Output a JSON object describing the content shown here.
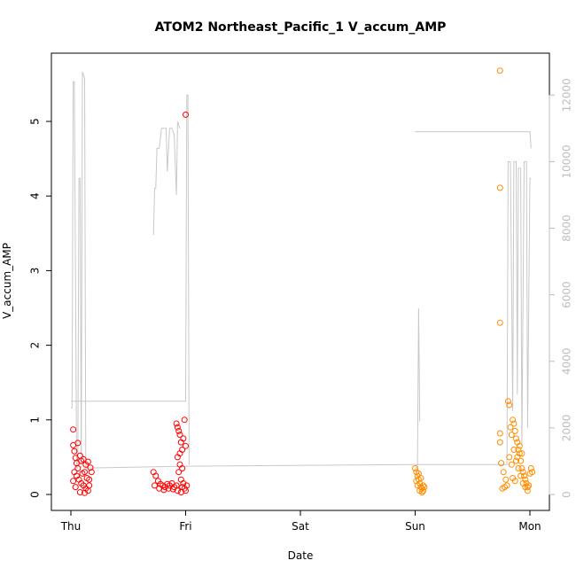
{
  "chart_data": {
    "type": "scatter",
    "title": "ATOM2 Northeast_Pacific_1 V_accum_AMP",
    "xlabel": "Date",
    "ylabel": "V_accum_AMP",
    "x_ticks": [
      "Thu",
      "Fri",
      "Sat",
      "Sun",
      "Mon"
    ],
    "y_ticks": [
      "0",
      "1",
      "2",
      "3",
      "4",
      "5"
    ],
    "y_range": [
      -0.2,
      5.8
    ],
    "y2_ticks": [
      "0",
      "2000",
      "4000",
      "6000",
      "8000",
      "10000",
      "12000"
    ],
    "y2_range": [
      -500,
      13000
    ],
    "grid": false,
    "colors": {
      "series_1": "#ff0000",
      "series_2": "#ff8c00",
      "line": "#c8c8c8",
      "axis": "#000000",
      "right_axis": "#bdbdbd"
    },
    "series": [
      {
        "marker": "circle-open",
        "color": "#ff0000",
        "points": [
          [
            0.02,
            0.87
          ],
          [
            0.02,
            0.66
          ],
          [
            0.03,
            0.58
          ],
          [
            0.04,
            0.49
          ],
          [
            0.05,
            0.42
          ],
          [
            0.06,
            0.69
          ],
          [
            0.08,
            0.52
          ],
          [
            0.09,
            0.45
          ],
          [
            0.11,
            0.47
          ],
          [
            0.13,
            0.4
          ],
          [
            0.15,
            0.44
          ],
          [
            0.17,
            0.36
          ],
          [
            0.03,
            0.3
          ],
          [
            0.05,
            0.25
          ],
          [
            0.07,
            0.2
          ],
          [
            0.09,
            0.15
          ],
          [
            0.11,
            0.12
          ],
          [
            0.13,
            0.08
          ],
          [
            0.15,
            0.05
          ],
          [
            0.04,
            0.1
          ],
          [
            0.08,
            0.03
          ],
          [
            0.12,
            0.02
          ],
          [
            0.16,
            0.12
          ],
          [
            0.06,
            0.35
          ],
          [
            0.1,
            0.28
          ],
          [
            0.14,
            0.22
          ],
          [
            0.02,
            0.18
          ],
          [
            0.18,
            0.3
          ],
          [
            0.16,
            0.2
          ],
          [
            0.12,
            0.3
          ],
          [
            0.72,
            0.3
          ],
          [
            0.74,
            0.25
          ],
          [
            0.76,
            0.18
          ],
          [
            0.78,
            0.14
          ],
          [
            0.8,
            0.12
          ],
          [
            0.82,
            0.1
          ],
          [
            0.84,
            0.14
          ],
          [
            0.86,
            0.12
          ],
          [
            0.88,
            0.15
          ],
          [
            0.9,
            0.1
          ],
          [
            0.92,
            0.12
          ],
          [
            0.73,
            0.12
          ],
          [
            0.77,
            0.08
          ],
          [
            0.81,
            0.06
          ],
          [
            0.85,
            0.08
          ],
          [
            0.89,
            0.07
          ],
          [
            0.92,
            0.95
          ],
          [
            0.93,
            0.9
          ],
          [
            0.94,
            0.85
          ],
          [
            0.95,
            0.8
          ],
          [
            0.96,
            0.7
          ],
          [
            0.97,
            0.6
          ],
          [
            0.93,
            0.5
          ],
          [
            0.95,
            0.4
          ],
          [
            0.94,
            0.3
          ],
          [
            0.96,
            0.2
          ],
          [
            0.97,
            0.1
          ],
          [
            0.98,
            0.15
          ],
          [
            0.99,
            0.08
          ],
          [
            1.0,
            0.05
          ],
          [
            1.01,
            0.12
          ],
          [
            0.99,
            1.0
          ],
          [
            0.98,
            0.75
          ],
          [
            1.0,
            0.65
          ],
          [
            0.95,
            0.55
          ],
          [
            0.97,
            0.35
          ],
          [
            0.93,
            0.05
          ],
          [
            0.96,
            0.03
          ],
          [
            1.0,
            5.09
          ]
        ]
      },
      {
        "marker": "circle-open",
        "color": "#ff8c00",
        "points": [
          [
            3.0,
            0.35
          ],
          [
            3.01,
            0.3
          ],
          [
            3.02,
            0.25
          ],
          [
            3.03,
            0.2
          ],
          [
            3.04,
            0.15
          ],
          [
            3.05,
            0.1
          ],
          [
            3.06,
            0.08
          ],
          [
            3.07,
            0.05
          ],
          [
            3.02,
            0.12
          ],
          [
            3.04,
            0.05
          ],
          [
            3.06,
            0.03
          ],
          [
            3.01,
            0.18
          ],
          [
            3.03,
            0.28
          ],
          [
            3.05,
            0.22
          ],
          [
            3.07,
            0.12
          ],
          [
            3.08,
            0.1
          ],
          [
            3.74,
            5.68
          ],
          [
            3.74,
            4.11
          ],
          [
            3.74,
            2.3
          ],
          [
            3.74,
            0.82
          ],
          [
            3.74,
            0.7
          ],
          [
            3.75,
            0.42
          ],
          [
            3.77,
            0.3
          ],
          [
            3.79,
            0.2
          ],
          [
            3.81,
            1.25
          ],
          [
            3.82,
            1.2
          ],
          [
            3.83,
            0.9
          ],
          [
            3.84,
            0.8
          ],
          [
            3.85,
            1.0
          ],
          [
            3.86,
            0.95
          ],
          [
            3.87,
            0.85
          ],
          [
            3.88,
            0.75
          ],
          [
            3.89,
            0.7
          ],
          [
            3.9,
            0.6
          ],
          [
            3.91,
            0.55
          ],
          [
            3.92,
            0.45
          ],
          [
            3.93,
            0.35
          ],
          [
            3.94,
            0.3
          ],
          [
            3.95,
            0.25
          ],
          [
            3.96,
            0.2
          ],
          [
            3.97,
            0.15
          ],
          [
            3.98,
            0.1
          ],
          [
            3.99,
            0.12
          ],
          [
            4.0,
            0.28
          ],
          [
            4.01,
            0.35
          ],
          [
            4.02,
            0.3
          ],
          [
            3.76,
            0.08
          ],
          [
            3.78,
            0.1
          ],
          [
            3.8,
            0.12
          ],
          [
            3.82,
            0.5
          ],
          [
            3.84,
            0.4
          ],
          [
            3.86,
            0.6
          ],
          [
            3.88,
            0.45
          ],
          [
            3.9,
            0.35
          ],
          [
            3.92,
            0.25
          ],
          [
            3.94,
            0.15
          ],
          [
            3.96,
            0.1
          ],
          [
            3.98,
            0.05
          ],
          [
            3.85,
            0.22
          ],
          [
            3.87,
            0.18
          ],
          [
            3.89,
            0.5
          ],
          [
            3.91,
            0.65
          ],
          [
            3.93,
            0.55
          ]
        ]
      }
    ],
    "line_series": {
      "color": "#c8c8c8",
      "axis": "right",
      "segments": [
        [
          [
            0.0,
            2600
          ],
          [
            0.01,
            2600
          ],
          [
            0.02,
            12400
          ],
          [
            0.03,
            12400
          ],
          [
            0.05,
            800
          ],
          [
            0.06,
            800
          ],
          [
            0.07,
            9500
          ],
          [
            0.08,
            9500
          ],
          [
            0.09,
            800
          ],
          [
            0.1,
            12700
          ],
          [
            0.11,
            12600
          ],
          [
            0.12,
            12500
          ],
          [
            0.13,
            800
          ],
          [
            0.15,
            800
          ],
          [
            0.2,
            800
          ],
          [
            1.0,
            850
          ],
          [
            3.0,
            900
          ],
          [
            3.8,
            900
          ],
          [
            3.81,
            10000
          ],
          [
            3.83,
            10000
          ],
          [
            3.85,
            2500
          ],
          [
            3.86,
            10000
          ],
          [
            3.88,
            10000
          ],
          [
            3.89,
            3000
          ],
          [
            3.9,
            9800
          ],
          [
            3.92,
            9800
          ],
          [
            3.93,
            1500
          ],
          [
            3.95,
            10000
          ],
          [
            3.97,
            10000
          ],
          [
            3.98,
            2000
          ],
          [
            4.0,
            9500
          ],
          [
            4.01,
            9500
          ]
        ],
        [
          [
            0.0,
            2800
          ],
          [
            1.0,
            2800
          ],
          [
            1.01,
            12000
          ],
          [
            1.02,
            12000
          ],
          [
            1.03,
            900
          ]
        ],
        [
          [
            0.72,
            7800
          ],
          [
            0.73,
            9200
          ],
          [
            0.74,
            9200
          ],
          [
            0.75,
            10400
          ],
          [
            0.77,
            10400
          ],
          [
            0.79,
            11000
          ],
          [
            0.83,
            11000
          ],
          [
            0.84,
            9700
          ],
          [
            0.86,
            11000
          ],
          [
            0.88,
            11000
          ],
          [
            0.9,
            10800
          ],
          [
            0.92,
            9000
          ],
          [
            0.93,
            11200
          ],
          [
            0.95,
            11000
          ]
        ],
        [
          [
            3.0,
            10900
          ],
          [
            4.0,
            10900
          ],
          [
            4.01,
            10400
          ]
        ],
        [
          [
            3.0,
            800
          ],
          [
            3.02,
            800
          ],
          [
            3.03,
            5600
          ],
          [
            3.04,
            2200
          ]
        ]
      ]
    }
  }
}
